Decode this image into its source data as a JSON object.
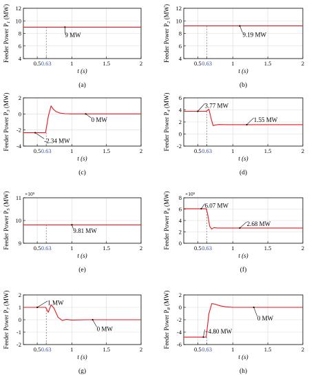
{
  "colors": {
    "line": "#e8141e",
    "axis": "#000000",
    "grid": "#d9d9d9",
    "marker": "#3a55a4",
    "annot": "#000000"
  },
  "chart_data": [
    {
      "type": "line",
      "panel_label": "(a)",
      "ylabel": "Feeder Power P1 (MW)",
      "ylabel_main": "Feeder Power P",
      "ylabel_sub": "1",
      "ylabel_unit": " (MW)",
      "xlabel": "t (s)",
      "exponent": "",
      "xlim": [
        0.3,
        2
      ],
      "ylim": [
        4,
        12
      ],
      "xticks": [
        {
          "v": 0.5,
          "t": "0.5"
        },
        {
          "v": 0.63,
          "t": "0.63"
        },
        {
          "v": 1,
          "t": "1"
        },
        {
          "v": 1.5,
          "t": "1.5"
        },
        {
          "v": 2,
          "t": "2"
        }
      ],
      "yticks": [
        {
          "v": 4,
          "t": "4"
        },
        {
          "v": 6,
          "t": "6"
        },
        {
          "v": 8,
          "t": "8"
        },
        {
          "v": 10,
          "t": "10"
        },
        {
          "v": 12,
          "t": "12"
        }
      ],
      "marker_x": 0.63,
      "series": [
        {
          "x": [
            0.3,
            2
          ],
          "y": [
            9,
            9
          ]
        }
      ],
      "annotations": [
        {
          "text": "9 MW",
          "x": 0.9,
          "y": 9,
          "tx": 0.9,
          "ty": 7.7
        }
      ]
    },
    {
      "type": "line",
      "panel_label": "(b)",
      "ylabel": "Feeder Power P2 (MW)",
      "ylabel_main": "Feeder Power P",
      "ylabel_sub": "2",
      "ylabel_unit": " (MW)",
      "xlabel": "t (s)",
      "exponent": "",
      "xlim": [
        0.3,
        2
      ],
      "ylim": [
        4,
        12
      ],
      "xticks": [
        {
          "v": 0.5,
          "t": "0.5"
        },
        {
          "v": 0.63,
          "t": "0.63"
        },
        {
          "v": 1,
          "t": "1"
        },
        {
          "v": 1.5,
          "t": "1.5"
        },
        {
          "v": 2,
          "t": "2"
        }
      ],
      "yticks": [
        {
          "v": 4,
          "t": "4"
        },
        {
          "v": 6,
          "t": "6"
        },
        {
          "v": 8,
          "t": "8"
        },
        {
          "v": 10,
          "t": "10"
        },
        {
          "v": 12,
          "t": "12"
        }
      ],
      "marker_x": 0.63,
      "series": [
        {
          "x": [
            0.3,
            2
          ],
          "y": [
            9.19,
            9.19
          ]
        }
      ],
      "annotations": [
        {
          "text": "9.19 MW",
          "x": 1.1,
          "y": 9.19,
          "tx": 1.14,
          "ty": 7.8
        }
      ]
    },
    {
      "type": "line",
      "panel_label": "(c)",
      "ylabel": "Feeder Power P3 (MW)",
      "ylabel_main": "Feeder Power P",
      "ylabel_sub": "3",
      "ylabel_unit": " (MW)",
      "xlabel": "t (s)",
      "exponent": "",
      "xlim": [
        0.3,
        2
      ],
      "ylim": [
        -4,
        2
      ],
      "xticks": [
        {
          "v": 0.5,
          "t": "0.5"
        },
        {
          "v": 0.63,
          "t": "0.63"
        },
        {
          "v": 1,
          "t": "1"
        },
        {
          "v": 1.5,
          "t": "1.5"
        },
        {
          "v": 2,
          "t": "2"
        }
      ],
      "yticks": [
        {
          "v": -4,
          "t": "-4"
        },
        {
          "v": -2,
          "t": "-2"
        },
        {
          "v": 0,
          "t": "0"
        },
        {
          "v": 2,
          "t": "2"
        }
      ],
      "marker_x": 0.63,
      "series": [
        {
          "x": [
            0.3,
            0.62,
            0.66,
            0.7,
            0.73,
            0.77,
            0.82,
            0.9,
            1.0,
            1.2,
            1.5,
            2.0
          ],
          "y": [
            -2.34,
            -2.34,
            -0.3,
            1.0,
            0.6,
            0.3,
            0.12,
            0.03,
            0.0,
            0.0,
            0.0,
            0.0
          ]
        }
      ],
      "annotations": [
        {
          "text": "0 MW",
          "x": 1.2,
          "y": 0,
          "tx": 1.28,
          "ty": -0.75
        },
        {
          "text": "-2.34 MW",
          "x": 0.47,
          "y": -2.34,
          "tx": 0.6,
          "ty": -3.35
        }
      ]
    },
    {
      "type": "line",
      "panel_label": "(d)",
      "ylabel": "Feeder Power P4 (MW)",
      "ylabel_main": "Feeder Power P",
      "ylabel_sub": "4",
      "ylabel_unit": " (MW)",
      "xlabel": "t (s)",
      "exponent": "",
      "xlim": [
        0.3,
        2
      ],
      "ylim": [
        -2,
        6
      ],
      "xticks": [
        {
          "v": 0.5,
          "t": "0.5"
        },
        {
          "v": 0.63,
          "t": "0.63"
        },
        {
          "v": 1,
          "t": "1"
        },
        {
          "v": 1.5,
          "t": "1.5"
        },
        {
          "v": 2,
          "t": "2"
        }
      ],
      "yticks": [
        {
          "v": -2,
          "t": "-2"
        },
        {
          "v": 0,
          "t": "0"
        },
        {
          "v": 2,
          "t": "2"
        },
        {
          "v": 4,
          "t": "4"
        },
        {
          "v": 6,
          "t": "6"
        }
      ],
      "marker_x": 0.63,
      "series": [
        {
          "x": [
            0.3,
            0.62,
            0.66,
            0.69,
            0.72,
            0.75,
            0.8,
            0.9,
            1.0,
            1.5,
            2.0
          ],
          "y": [
            3.77,
            3.77,
            4.1,
            2.6,
            1.4,
            1.5,
            1.58,
            1.55,
            1.55,
            1.55,
            1.55
          ]
        }
      ],
      "annotations": [
        {
          "text": "3.77 MW",
          "x": 0.5,
          "y": 3.77,
          "tx": 0.6,
          "ty": 4.7
        },
        {
          "text": "1.55 MW",
          "x": 1.2,
          "y": 1.55,
          "tx": 1.3,
          "ty": 2.35
        }
      ]
    },
    {
      "type": "line",
      "panel_label": "(e)",
      "ylabel": "Feeder Power P5 (MW)",
      "ylabel_main": "Feeder Power P",
      "ylabel_sub": "5",
      "ylabel_unit": " (MW)",
      "xlabel": "t (s)",
      "exponent": "×10⁵",
      "xlim": [
        0.3,
        2
      ],
      "ylim": [
        9,
        11
      ],
      "xticks": [
        {
          "v": 0.5,
          "t": "0.5"
        },
        {
          "v": 0.63,
          "t": "0.63"
        },
        {
          "v": 1,
          "t": "1"
        },
        {
          "v": 1.5,
          "t": "1.5"
        },
        {
          "v": 2,
          "t": "2"
        }
      ],
      "yticks": [
        {
          "v": 9,
          "t": "9"
        },
        {
          "v": 10,
          "t": "10"
        },
        {
          "v": 11,
          "t": "11"
        }
      ],
      "marker_x": 0.63,
      "series": [
        {
          "x": [
            0.3,
            2
          ],
          "y": [
            9.81,
            9.81
          ]
        }
      ],
      "annotations": [
        {
          "text": "9.81 MW",
          "x": 1.0,
          "y": 9.81,
          "tx": 1.02,
          "ty": 9.55
        }
      ]
    },
    {
      "type": "line",
      "panel_label": "(f)",
      "ylabel": "Feeder Power P6 (MW)",
      "ylabel_main": "Feeder Power P",
      "ylabel_sub": "6",
      "ylabel_unit": " (MW)",
      "xlabel": "t (s)",
      "exponent": "×10⁵",
      "xlim": [
        0.3,
        2
      ],
      "ylim": [
        0,
        8
      ],
      "xticks": [
        {
          "v": 0.5,
          "t": "0.5"
        },
        {
          "v": 0.63,
          "t": "0.63"
        },
        {
          "v": 1,
          "t": "1"
        },
        {
          "v": 1.5,
          "t": "1.5"
        },
        {
          "v": 2,
          "t": "2"
        }
      ],
      "yticks": [
        {
          "v": 0,
          "t": "0"
        },
        {
          "v": 2,
          "t": "2"
        },
        {
          "v": 4,
          "t": "4"
        },
        {
          "v": 6,
          "t": "6"
        },
        {
          "v": 8,
          "t": "8"
        }
      ],
      "marker_x": 0.63,
      "series": [
        {
          "x": [
            0.3,
            0.62,
            0.64,
            0.67,
            0.7,
            0.73,
            0.78,
            0.85,
            1.0,
            1.5,
            2.0
          ],
          "y": [
            6.07,
            6.07,
            5.2,
            3.0,
            2.5,
            2.75,
            2.68,
            2.68,
            2.68,
            2.68,
            2.68
          ]
        }
      ],
      "annotations": [
        {
          "text": "6.07 MW",
          "x": 0.55,
          "y": 6.07,
          "tx": 0.6,
          "ty": 6.6
        },
        {
          "text": "2.68 MW",
          "x": 1.1,
          "y": 2.68,
          "tx": 1.2,
          "ty": 3.4
        }
      ]
    },
    {
      "type": "line",
      "panel_label": "(g)",
      "ylabel": "Feeder Power P7 (MW)",
      "ylabel_main": "Feeder Power P",
      "ylabel_sub": "7",
      "ylabel_unit": " (MW)",
      "xlabel": "t (s)",
      "exponent": "",
      "xlim": [
        0.3,
        2
      ],
      "ylim": [
        -2,
        2
      ],
      "xticks": [
        {
          "v": 0.5,
          "t": "0.5"
        },
        {
          "v": 0.63,
          "t": "0.63"
        },
        {
          "v": 1,
          "t": "1"
        },
        {
          "v": 1.5,
          "t": "1.5"
        },
        {
          "v": 2,
          "t": "2"
        }
      ],
      "yticks": [
        {
          "v": -2,
          "t": "-2"
        },
        {
          "v": -1,
          "t": "-1"
        },
        {
          "v": 0,
          "t": "0"
        },
        {
          "v": 1,
          "t": "1"
        },
        {
          "v": 2,
          "t": "2"
        }
      ],
      "marker_x": 0.63,
      "series": [
        {
          "x": [
            0.3,
            0.62,
            0.66,
            0.7,
            0.74,
            0.8,
            0.86,
            0.92,
            1.0,
            1.2,
            1.5,
            2.0
          ],
          "y": [
            1,
            1,
            0.6,
            1.2,
            0.95,
            0.2,
            -0.05,
            0.02,
            -0.02,
            0,
            0,
            0
          ]
        }
      ],
      "annotations": [
        {
          "text": "1 MW",
          "x": 0.5,
          "y": 1,
          "tx": 0.65,
          "ty": 1.35
        },
        {
          "text": "0 MW",
          "x": 1.3,
          "y": 0,
          "tx": 1.36,
          "ty": -0.75
        }
      ]
    },
    {
      "type": "line",
      "panel_label": "(h)",
      "ylabel": "Feeder Power P8 (MW)",
      "ylabel_main": "Feeder Power P",
      "ylabel_sub": "8",
      "ylabel_unit": " (MW)",
      "xlabel": "t (s)",
      "exponent": "",
      "xlim": [
        0.3,
        2
      ],
      "ylim": [
        -6,
        2
      ],
      "xticks": [
        {
          "v": 0.5,
          "t": "0.5"
        },
        {
          "v": 0.63,
          "t": "0.63"
        },
        {
          "v": 1,
          "t": "1"
        },
        {
          "v": 1.5,
          "t": "1.5"
        },
        {
          "v": 2,
          "t": "2"
        }
      ],
      "yticks": [
        {
          "v": -6,
          "t": "-6"
        },
        {
          "v": -4,
          "t": "-4"
        },
        {
          "v": -2,
          "t": "-2"
        },
        {
          "v": 0,
          "t": "0"
        },
        {
          "v": 2,
          "t": "2"
        }
      ],
      "marker_x": 0.63,
      "series": [
        {
          "x": [
            0.3,
            0.62,
            0.66,
            0.7,
            0.75,
            0.82,
            0.9,
            1.0,
            1.2,
            1.5,
            2.0
          ],
          "y": [
            -4.8,
            -4.8,
            -1.0,
            0.6,
            0.5,
            0.25,
            0.08,
            0.0,
            0.0,
            0.0,
            0.0
          ]
        }
      ],
      "annotations": [
        {
          "text": "0 MW",
          "x": 1.3,
          "y": 0,
          "tx": 1.35,
          "ty": -1.8
        },
        {
          "text": "−4.80 MW",
          "x": 0.58,
          "y": -4.8,
          "tx": 0.6,
          "ty": -3.9
        }
      ]
    }
  ]
}
